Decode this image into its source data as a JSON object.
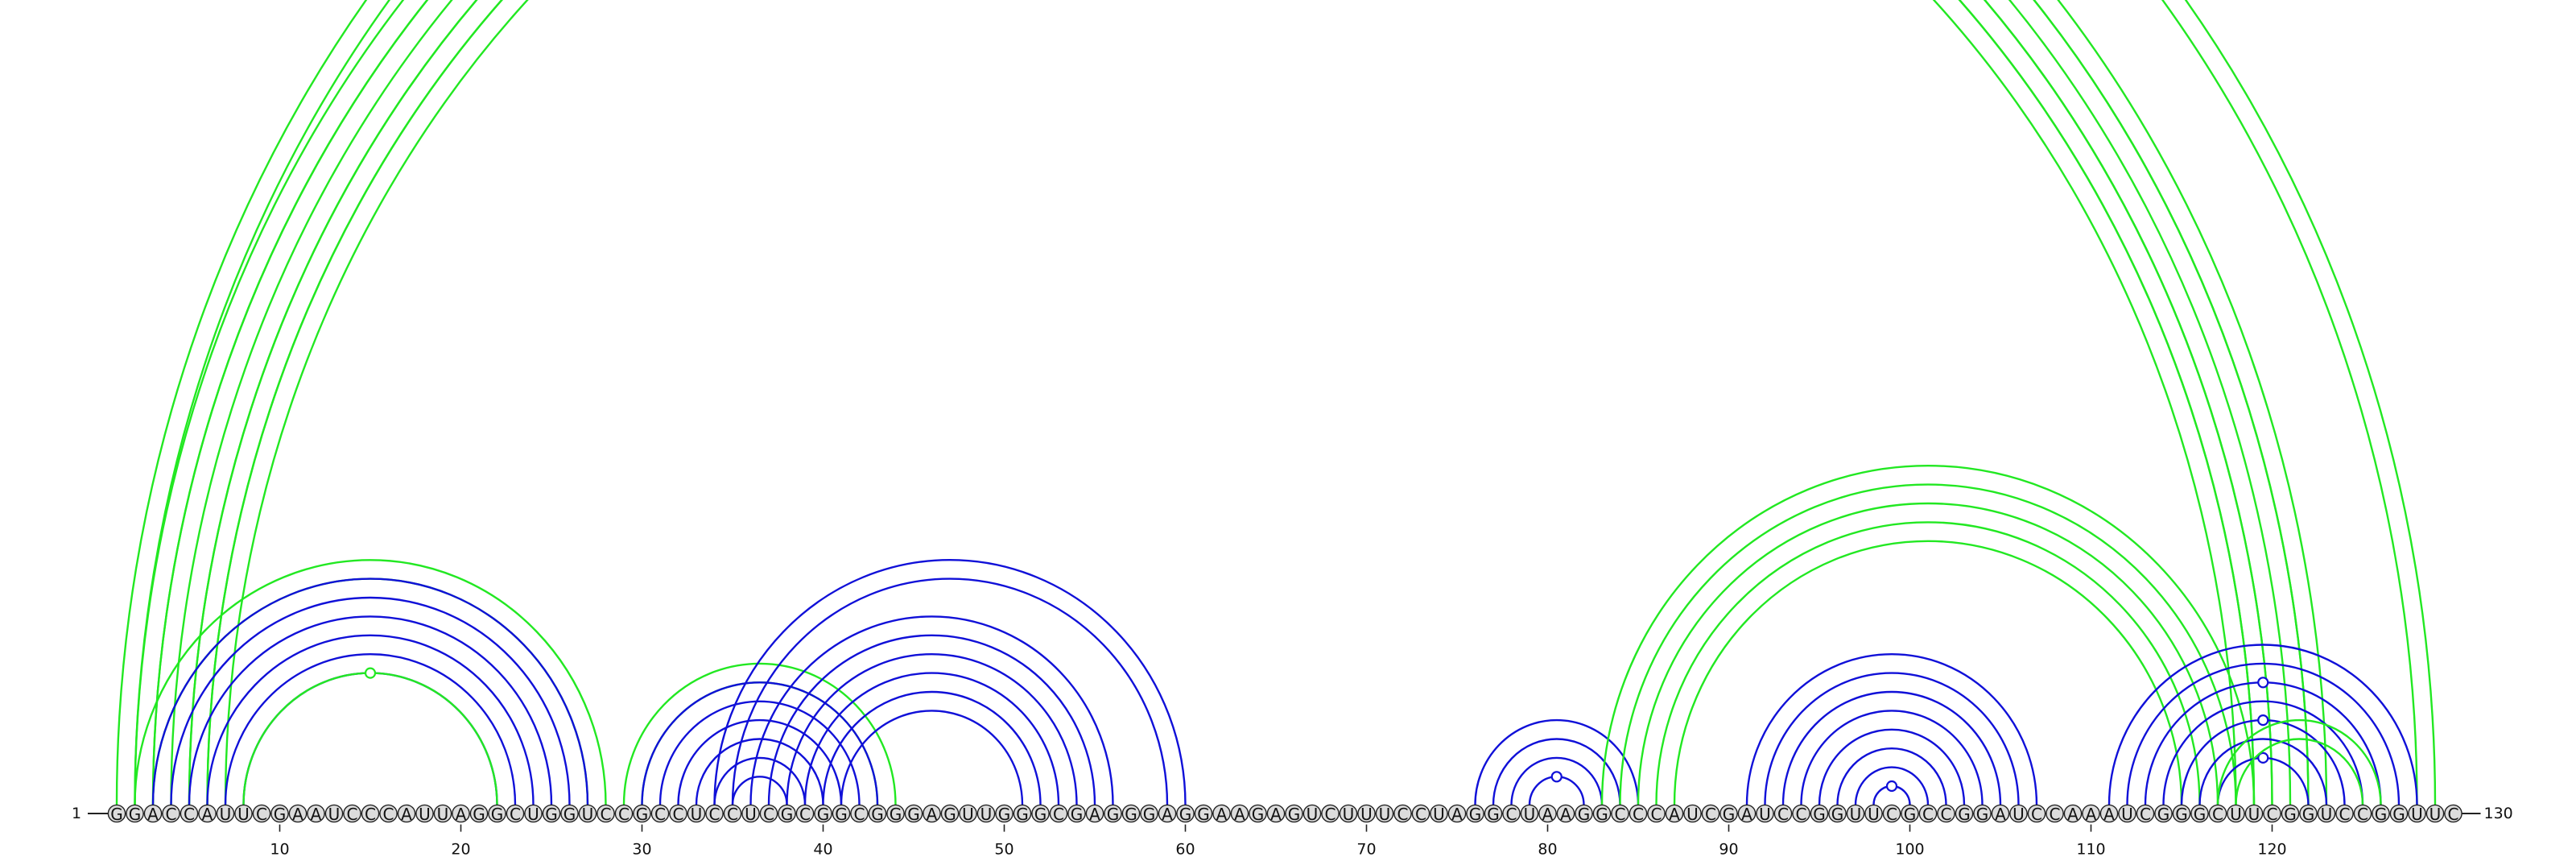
{
  "sequence": "GGACCAUUCGAAUCCCAUUAGGCUGGUCCGCCUCCUCGCGGCGGGAGUUGGGCGAGGGAGGAAGAGUCUUUCCUAGGCUAAGGCCCAUCGAUCCGGUUCGCCGGAUCCAAAUCGGGCUUCGGUCCGGUUC",
  "start_label": "1",
  "end_label": "130",
  "ticks": [
    "10",
    "20",
    "30",
    "40",
    "50",
    "60",
    "70",
    "80",
    "90",
    "100",
    "110",
    "120"
  ],
  "colors": {
    "helix_a": "#1010d8",
    "helix_b": "#22e822"
  },
  "stems": [
    {
      "color": "green",
      "i": 1,
      "j": 129,
      "count": 2,
      "loop_marker": false
    },
    {
      "color": "green",
      "i": 2,
      "j": 123,
      "count": 2,
      "loop_marker": false
    },
    {
      "color": "green",
      "i": 3,
      "j": 122,
      "count": 5,
      "loop_marker": false
    },
    {
      "color": "green",
      "i": 5,
      "j": 120,
      "count": 2,
      "loop_marker": false
    },
    {
      "color": "green",
      "i": 2,
      "j": 28,
      "count": 2,
      "loop_marker": false
    },
    {
      "color": "blue",
      "i": 3,
      "j": 27,
      "count": 6,
      "loop_marker": false
    },
    {
      "color": "green",
      "i": 8,
      "j": 22,
      "count": 1,
      "loop_marker": true
    },
    {
      "color": "green",
      "i": 29,
      "j": 44,
      "count": 2,
      "loop_marker": false
    },
    {
      "color": "blue",
      "i": 30,
      "j": 43,
      "count": 6,
      "loop_marker": false
    },
    {
      "color": "blue",
      "i": 36,
      "j": 56,
      "count": 6,
      "loop_marker": false
    },
    {
      "color": "blue",
      "i": 34,
      "j": 60,
      "count": 2,
      "loop_marker": false
    },
    {
      "color": "blue",
      "i": 76,
      "j": 85,
      "count": 4,
      "loop_marker": true
    },
    {
      "color": "green",
      "i": 83,
      "j": 119,
      "count": 5,
      "loop_marker": false
    },
    {
      "color": "blue",
      "i": 91,
      "j": 107,
      "count": 8,
      "loop_marker": true
    },
    {
      "color": "blue",
      "i": 111,
      "j": 128,
      "count": 3,
      "loop_marker": true
    },
    {
      "color": "blue",
      "i": 114,
      "j": 125,
      "count": 2,
      "loop_marker": true
    },
    {
      "color": "blue",
      "i": 116,
      "j": 123,
      "count": 2,
      "loop_marker": true
    },
    {
      "color": "green",
      "i": 117,
      "j": 126,
      "count": 2,
      "loop_marker": false
    }
  ]
}
